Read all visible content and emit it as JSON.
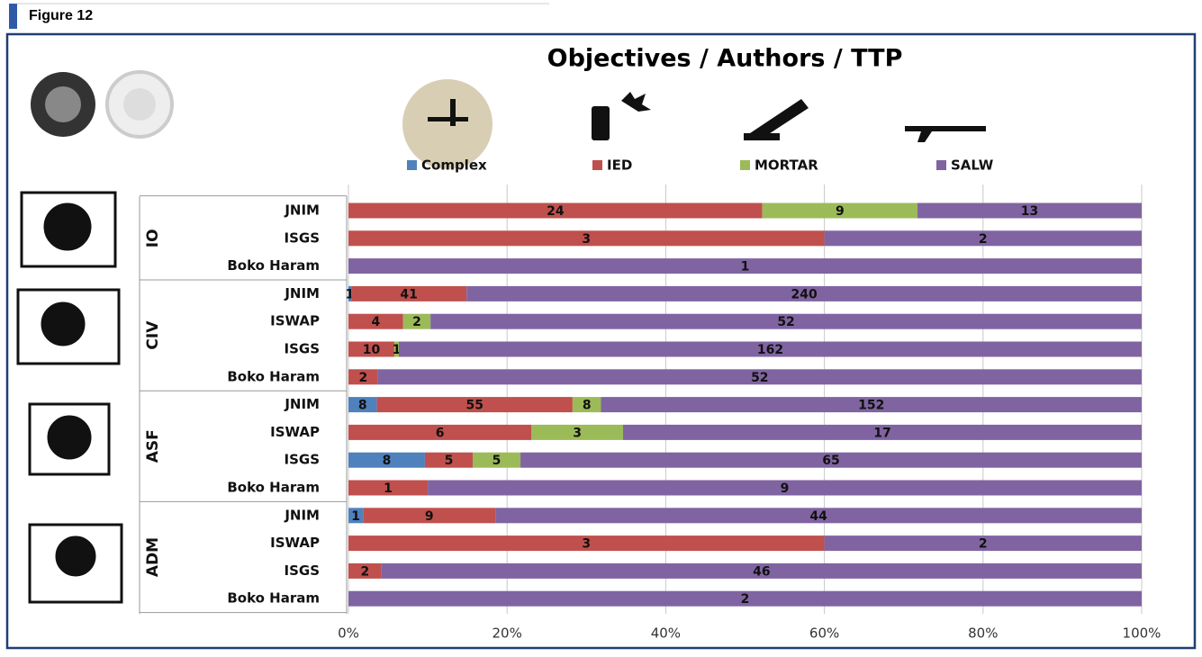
{
  "figure_label": "Figure 12",
  "chart_data": {
    "type": "stacked_percent_bar",
    "orientation": "horizontal",
    "title": "Objectives / Authors / TTP",
    "groups": [
      {
        "label": "IO",
        "categories": [
          "JNIM",
          "ISGS",
          "Boko Haram"
        ]
      },
      {
        "label": "CIV",
        "categories": [
          "JNIM",
          "ISWAP",
          "ISGS",
          "Boko Haram"
        ]
      },
      {
        "label": "ASF",
        "categories": [
          "JNIM",
          "ISWAP",
          "ISGS",
          "Boko Haram"
        ]
      },
      {
        "label": "ADM",
        "categories": [
          "JNIM",
          "ISWAP",
          "ISGS",
          "Boko Haram"
        ]
      }
    ],
    "series": [
      {
        "name": "Complex",
        "color": "#4f81bd",
        "values": [
          null,
          null,
          null,
          1,
          null,
          null,
          null,
          8,
          null,
          8,
          null,
          1,
          null,
          null,
          null
        ]
      },
      {
        "name": "IED",
        "color": "#c0504d",
        "values": [
          24,
          3,
          null,
          41,
          4,
          10,
          2,
          55,
          6,
          5,
          1,
          9,
          3,
          2,
          null
        ]
      },
      {
        "name": "MORTAR",
        "color": "#9bbb59",
        "values": [
          9,
          null,
          null,
          null,
          2,
          1,
          null,
          8,
          3,
          5,
          null,
          null,
          null,
          null,
          null
        ]
      },
      {
        "name": "SALW",
        "color": "#8064a2",
        "values": [
          13,
          2,
          1,
          240,
          52,
          162,
          52,
          152,
          17,
          65,
          9,
          44,
          2,
          46,
          2
        ]
      }
    ],
    "xlim": [
      0,
      100
    ],
    "xticks": [
      {
        "value": 0,
        "label": "0%"
      },
      {
        "value": 20,
        "label": "20%"
      },
      {
        "value": 40,
        "label": "40%"
      },
      {
        "value": 60,
        "label": "60%"
      },
      {
        "value": 80,
        "label": "80%"
      },
      {
        "value": 100,
        "label": "100%"
      }
    ],
    "grid": true,
    "legend": "top"
  }
}
